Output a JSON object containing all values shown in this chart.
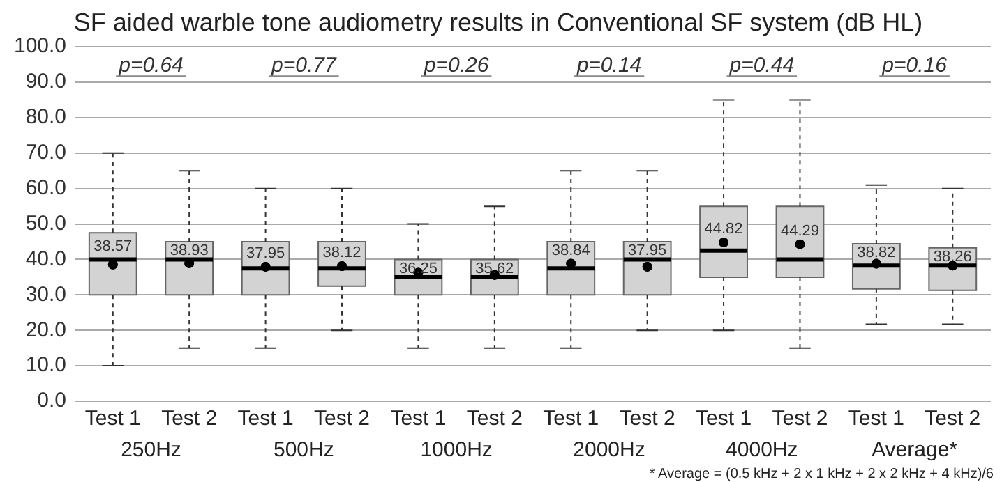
{
  "chart_data": {
    "type": "box",
    "title": "SF aided warble tone audiometry results in Conventional SF system (dB HL)",
    "categories": [
      "Test 1",
      "Test 2",
      "Test 1",
      "Test 2",
      "Test 1",
      "Test 2",
      "Test 1",
      "Test 2",
      "Test 1",
      "Test 2",
      "Test 1",
      "Test 2"
    ],
    "boxes": [
      {
        "low": 10,
        "q1": 30,
        "median": 40,
        "q3": 47.5,
        "high": 70,
        "mean": 38.57
      },
      {
        "low": 15,
        "q1": 30,
        "median": 40,
        "q3": 45,
        "high": 65,
        "mean": 38.93
      },
      {
        "low": 15,
        "q1": 30,
        "median": 37.5,
        "q3": 45,
        "high": 60,
        "mean": 37.95
      },
      {
        "low": 20,
        "q1": 32.5,
        "median": 37.5,
        "q3": 45,
        "high": 60,
        "mean": 38.12
      },
      {
        "low": 15,
        "q1": 30,
        "median": 35,
        "q3": 40,
        "high": 50,
        "mean": 36.25
      },
      {
        "low": 15,
        "q1": 30,
        "median": 35,
        "q3": 40,
        "high": 55,
        "mean": 35.62
      },
      {
        "low": 15,
        "q1": 30,
        "median": 37.5,
        "q3": 45,
        "high": 65,
        "mean": 38.84
      },
      {
        "low": 20,
        "q1": 30,
        "median": 40,
        "q3": 45,
        "high": 65,
        "mean": 37.95
      },
      {
        "low": 20,
        "q1": 35,
        "median": 42.5,
        "q3": 55,
        "high": 85,
        "mean": 44.82
      },
      {
        "low": 15,
        "q1": 35,
        "median": 40,
        "q3": 55,
        "high": 85,
        "mean": 44.29
      },
      {
        "low": 21.7,
        "q1": 31.7,
        "median": 38.3,
        "q3": 44.4,
        "high": 61,
        "mean": 38.82
      },
      {
        "low": 21.7,
        "q1": 31.3,
        "median": 38.3,
        "q3": 43.3,
        "high": 60,
        "mean": 38.26
      }
    ],
    "color": "#d3d3d3",
    "ylim": [
      0,
      100
    ],
    "yticks": [
      {
        "value": 0,
        "label": "0.0"
      },
      {
        "value": 10,
        "label": "10.0"
      },
      {
        "value": 20,
        "label": "20.0"
      },
      {
        "value": 30,
        "label": "30.0"
      },
      {
        "value": 40,
        "label": "40.0"
      },
      {
        "value": 50,
        "label": "50.0"
      },
      {
        "value": 60,
        "label": "60.0"
      },
      {
        "value": 70,
        "label": "70.0"
      },
      {
        "value": 80,
        "label": "80.0"
      },
      {
        "value": 90,
        "label": "90.0"
      },
      {
        "value": 100,
        "label": "100.0"
      }
    ],
    "value_labels": [
      "38.57",
      "38.93",
      "37.95",
      "38.12",
      "36.25",
      "35.62",
      "38.84",
      "37.95",
      "44.82",
      "44.29",
      "38.82",
      "38.26"
    ],
    "grid": "y",
    "legend": false,
    "marker": "circle",
    "annotations": [
      "p=0.64",
      "p=0.77",
      "p=0.26",
      "p=0.14",
      "p=0.44",
      "p=0.16",
      "250Hz",
      "500Hz",
      "1000Hz",
      "2000Hz",
      "4000Hz",
      "Average*",
      "* Average = (0.5 kHz + 2 x 1 kHz + 2 x 2 kHz + 4 kHz)/6"
    ]
  }
}
